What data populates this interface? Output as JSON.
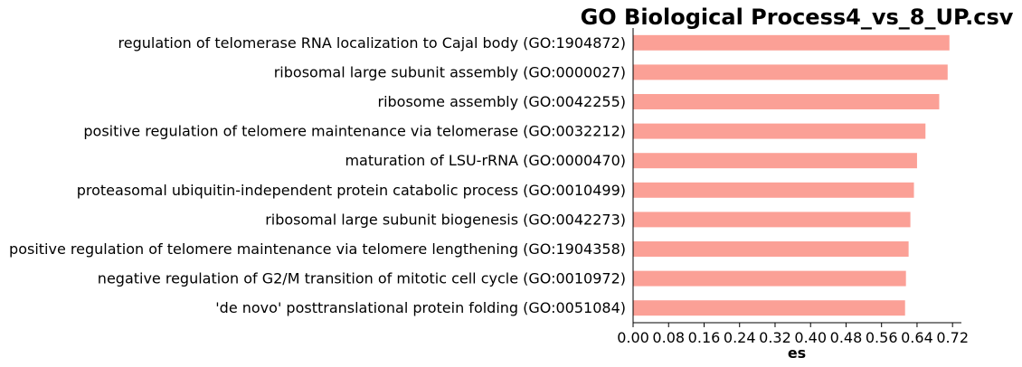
{
  "chart_data": {
    "type": "bar",
    "orientation": "horizontal",
    "title": "GO Biological Process4_vs_8_UP.csv",
    "xlabel": "es",
    "ylabel": "",
    "xlim": [
      0,
      0.74
    ],
    "xticks": [
      "0.00",
      "0.08",
      "0.16",
      "0.24",
      "0.32",
      "0.40",
      "0.48",
      "0.56",
      "0.64",
      "0.72"
    ],
    "grid": false,
    "bar_color": "#fba096",
    "categories": [
      "regulation of telomerase RNA localization to Cajal body (GO:1904872)",
      "ribosomal large subunit assembly (GO:0000027)",
      "ribosome assembly (GO:0042255)",
      "positive regulation of telomere maintenance via telomerase (GO:0032212)",
      "maturation of LSU-rRNA (GO:0000470)",
      "proteasomal ubiquitin-independent protein catabolic process (GO:0010499)",
      "ribosomal large subunit biogenesis (GO:0042273)",
      "positive regulation of telomere maintenance via telomere lengthening (GO:1904358)",
      "negative regulation of G2/M transition of mitotic cell cycle (GO:0010972)",
      "'de novo' posttranslational protein folding (GO:0051084)"
    ],
    "values": [
      0.713,
      0.709,
      0.69,
      0.659,
      0.64,
      0.633,
      0.625,
      0.621,
      0.615,
      0.613
    ]
  }
}
